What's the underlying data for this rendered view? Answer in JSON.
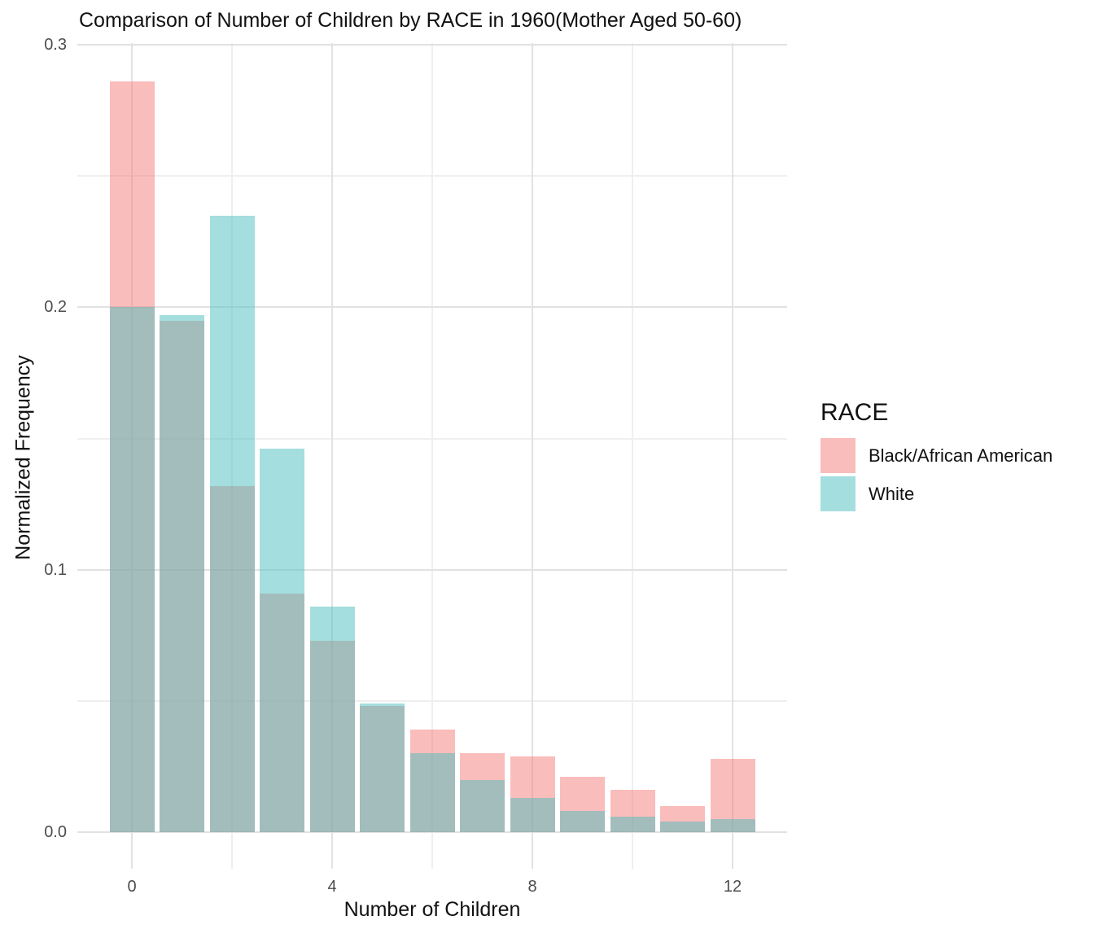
{
  "title": "Comparison of Number of Children by RACE in 1960(Mother Aged 50-60)",
  "axes": {
    "x": {
      "label": "Number of Children",
      "ticks": [
        {
          "value": 0,
          "label": "0"
        },
        {
          "value": 4,
          "label": "4"
        },
        {
          "value": 8,
          "label": "8"
        },
        {
          "value": 12,
          "label": "12"
        }
      ],
      "minor_gridlines": [
        2,
        6,
        10
      ]
    },
    "y": {
      "label": "Normalized Frequency",
      "ticks": [
        {
          "value": 0.0,
          "label": "0.0"
        },
        {
          "value": 0.1,
          "label": "0.1"
        },
        {
          "value": 0.2,
          "label": "0.2"
        },
        {
          "value": 0.3,
          "label": "0.3"
        }
      ],
      "minor_gridlines": [
        0.05,
        0.15,
        0.25
      ],
      "range": [
        0,
        0.3
      ]
    }
  },
  "legend": {
    "title": "RACE",
    "entries": [
      {
        "label": "Black/African American",
        "swatch_color": "#F8BCB9"
      },
      {
        "label": "White",
        "swatch_color": "#A5DEDE"
      }
    ],
    "position": "right"
  },
  "colors": {
    "background": "#ffffff",
    "grid_major": "#e2e2e2",
    "grid_minor": "#efefef",
    "tick_text": "#4d4d4d",
    "pink_on_white": "#F8BCB9",
    "teal_on_white": "#A5DEDE",
    "overlap": "#A0BCBB"
  },
  "chart_data": {
    "type": "bar",
    "subtype": "overlaid-histogram",
    "title": "Comparison of Number of Children by RACE in 1960(Mother Aged 50-60)",
    "xlabel": "Number of Children",
    "ylabel": "Normalized Frequency",
    "categories": [
      0,
      1,
      2,
      3,
      4,
      5,
      6,
      7,
      8,
      9,
      10,
      11,
      12
    ],
    "series": [
      {
        "name": "Black/African American",
        "fill_rgba": "rgba(243,123,119,0.5)",
        "fill_on_white": "#F8BCB9",
        "values": [
          0.286,
          0.195,
          0.132,
          0.091,
          0.073,
          0.048,
          0.039,
          0.03,
          0.029,
          0.021,
          0.016,
          0.01,
          0.028
        ]
      },
      {
        "name": "White",
        "fill_rgba": "rgba(75,189,189,0.5)",
        "fill_on_white": "#A5DEDE",
        "values": [
          0.2,
          0.197,
          0.235,
          0.146,
          0.086,
          0.049,
          0.03,
          0.02,
          0.013,
          0.008,
          0.006,
          0.004,
          0.005
        ]
      }
    ],
    "ylim": [
      0,
      0.3
    ],
    "x_major_ticks": [
      0,
      4,
      8,
      12
    ],
    "grid": "on",
    "legend_position": "right",
    "legend_title": "RACE"
  }
}
